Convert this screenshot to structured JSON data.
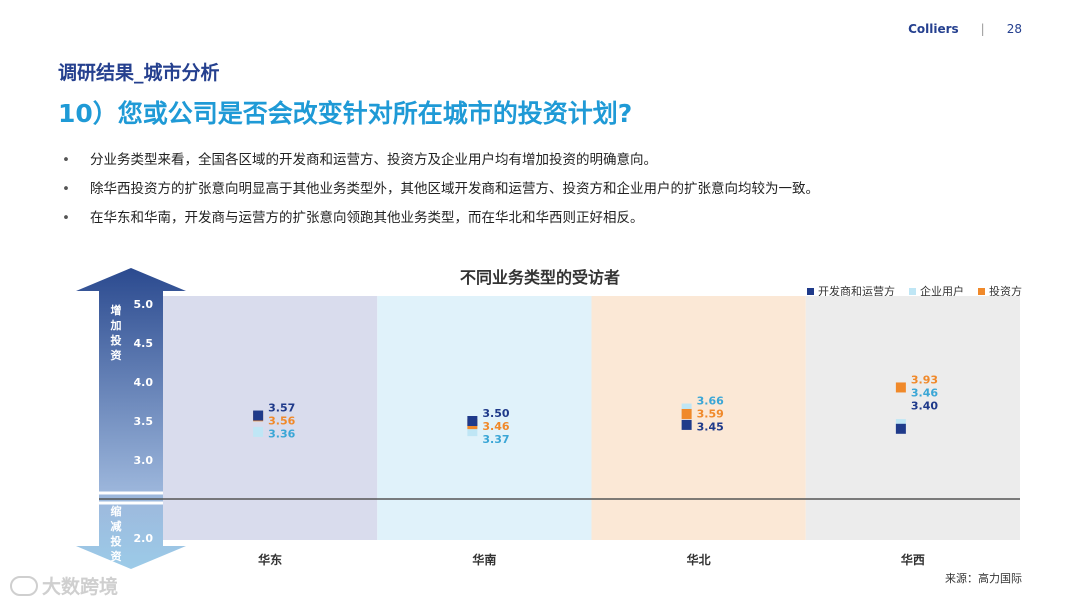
{
  "header": {
    "brand": "Colliers",
    "separator": "|",
    "page_number": "28"
  },
  "section_title": "调研结果_城市分析",
  "main_title": "10）您或公司是否会改变针对所在城市的投资计划?",
  "bullets": [
    "分业务类型来看，全国各区域的开发商和运营方、投资方及企业用户均有增加投资的明确意向。",
    "除华西投资方的扩张意向明显高于其他业务类型外，其他区域开发商和运营方、投资方和企业用户的扩张意向均较为一致。",
    "在华东和华南，开发商与运营方的扩张意向领跑其他业务类型，而在华北和华西则正好相反。"
  ],
  "bullet_marker": "•",
  "source": "来源：高力国际",
  "watermark": "大数跨境",
  "colors": {
    "brand": "#25408f",
    "title_blue": "#1f9ad6",
    "developer": "#1f3a8a",
    "corporate": "#bfe6f5",
    "investor": "#f0892a",
    "band_east": "#d9dced",
    "band_south": "#e0f2fa",
    "band_north": "#fbe8d6",
    "band_west": "#ececec",
    "axis_arrow_top": "#2b4a8f",
    "axis_arrow_bottom": "#9ccbe8",
    "baseline": "#555555"
  },
  "chart_data": {
    "type": "scatter",
    "title": "不同业务类型的受访者",
    "categories": [
      "华东",
      "华南",
      "华北",
      "华西"
    ],
    "y_ticks": [
      "5.0",
      "4.5",
      "4.0",
      "3.5",
      "3.0",
      "2.0"
    ],
    "ylim": [
      2.0,
      5.0
    ],
    "baseline_value": 2.5,
    "axis_label_top": [
      "增",
      "加",
      "投",
      "资"
    ],
    "axis_label_bottom": [
      "缩",
      "减",
      "投",
      "资"
    ],
    "legend_position": "top-right",
    "series": [
      {
        "name": "开发商和运营方",
        "color": "#1f3a8a",
        "values": [
          3.57,
          3.5,
          3.45,
          3.4
        ]
      },
      {
        "name": "企业用户",
        "color": "#bfe6f5",
        "values": [
          3.36,
          3.37,
          3.66,
          3.46
        ]
      },
      {
        "name": "投资方",
        "color": "#f0892a",
        "values": [
          3.56,
          3.46,
          3.59,
          3.93
        ]
      }
    ],
    "value_labels": [
      [
        "3.57",
        "3.37",
        "3.66",
        "3.93"
      ],
      [
        "3.56",
        "3.46",
        "3.59",
        "3.46"
      ],
      [
        "3.36",
        "3.50",
        "3.45",
        "3.40"
      ]
    ],
    "value_labels_note": "",
    "data_labels": [
      [
        {
          "text": "3.57",
          "series": 0
        },
        {
          "text": "3.56",
          "series": 2
        },
        {
          "text": "3.36",
          "series": 1
        }
      ],
      [
        {
          "text": "3.50",
          "series": 0
        },
        {
          "text": "3.46",
          "series": 2
        },
        {
          "text": "3.37",
          "series": 1
        }
      ],
      [
        {
          "text": "3.66",
          "series": 1
        },
        {
          "text": "3.59",
          "series": 2
        },
        {
          "text": "3.45",
          "series": 0
        }
      ],
      [
        {
          "text": "3.93",
          "series": 2
        },
        {
          "text": "3.46",
          "series": 1
        },
        {
          "text": "3.40",
          "series": 0
        }
      ]
    ],
    "label_colors": {
      "0": "#1f3a8a",
      "1": "#3aa6d6",
      "2": "#f0892a"
    }
  }
}
